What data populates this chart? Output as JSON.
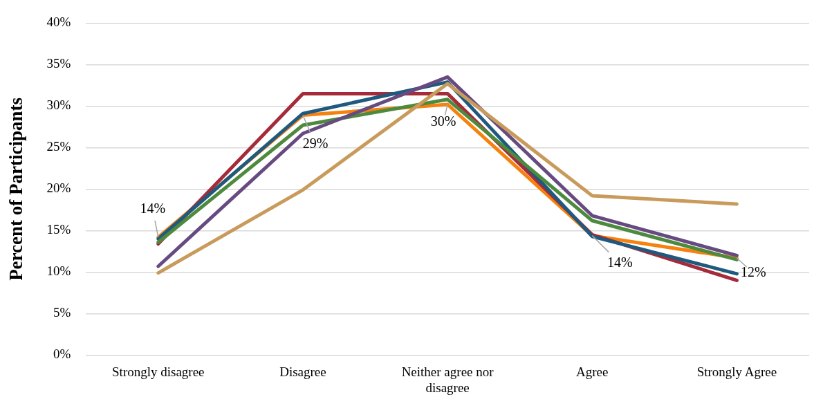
{
  "chart_data": {
    "type": "line",
    "ylabel": "Percent of Participants",
    "categories": [
      "Strongly disagree",
      "Disagree",
      "Neither agree nor disagree",
      "Agree",
      "Strongly Agree"
    ],
    "series": [
      {
        "color": "#c89b5c",
        "values": [
          9.9,
          19.9,
          32.7,
          19.2,
          18.2
        ]
      },
      {
        "color": "#664a80",
        "values": [
          10.7,
          26.7,
          33.5,
          16.8,
          12.0
        ]
      },
      {
        "color": "#4e8a3e",
        "values": [
          13.6,
          27.7,
          30.8,
          16.2,
          11.5
        ]
      },
      {
        "color": "#1f5a7e",
        "values": [
          14.0,
          29.1,
          32.9,
          14.3,
          9.8
        ]
      },
      {
        "color": "#a52a3a",
        "values": [
          13.4,
          31.5,
          31.5,
          14.5,
          9.0
        ]
      },
      {
        "color": "#f5820f",
        "values": [
          14.2,
          28.9,
          30.2,
          14.4,
          11.7
        ],
        "value_labels": [
          "14%",
          "29%",
          "30%",
          "14%",
          "12%"
        ]
      }
    ],
    "ylim": [
      0,
      40
    ],
    "yticks": [
      {
        "value": 0,
        "label": "0%"
      },
      {
        "value": 5,
        "label": "5%"
      },
      {
        "value": 10,
        "label": "10%"
      },
      {
        "value": 15,
        "label": "15%"
      },
      {
        "value": 20,
        "label": "20%"
      },
      {
        "value": 25,
        "label": "25%"
      },
      {
        "value": 30,
        "label": "30%"
      },
      {
        "value": 35,
        "label": "35%"
      },
      {
        "value": 40,
        "label": "40%"
      }
    ],
    "grid": "y",
    "legend": false,
    "marker": "none",
    "line_style": "solid"
  }
}
